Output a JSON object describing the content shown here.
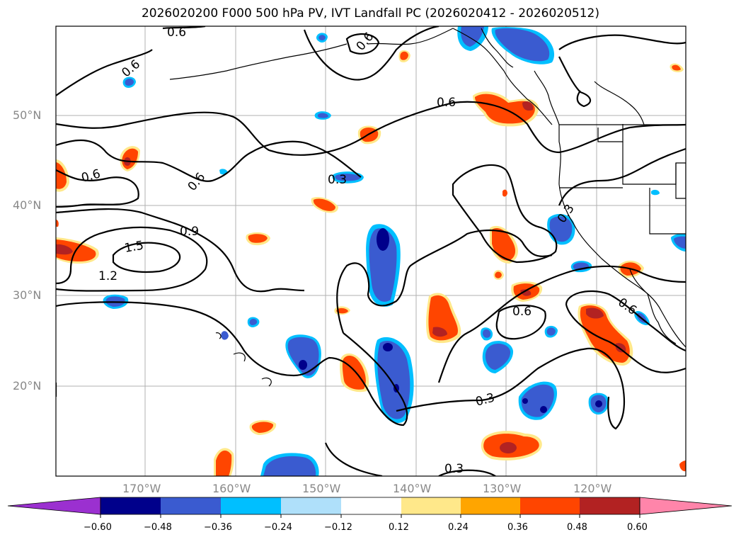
{
  "title": "2026020200 F000 500 hPa PV, IVT Landfall PC (2026020412 - 2026020512)",
  "lat_labels": [
    "50°N",
    "40°N",
    "30°N",
    "20°N"
  ],
  "lon_labels": [
    "170°W",
    "160°W",
    "150°W",
    "140°W",
    "130°W",
    "120°W"
  ],
  "contour_labels": [
    "0.6",
    "0.6",
    "0.6",
    "0.6",
    "0.6",
    "0.6",
    "0.6",
    "0.6",
    "0.3",
    "0.3",
    "0.9",
    "1.5",
    "1.2",
    "0.3",
    "0.3"
  ],
  "colorbar": {
    "ticks": [
      "−0.60",
      "−0.48",
      "−0.36",
      "−0.24",
      "−0.12",
      "0.12",
      "0.24",
      "0.36",
      "0.48",
      "0.60"
    ],
    "colors": [
      "#9b30d0",
      "#00008b",
      "#3a5bd0",
      "#00bfff",
      "#afe0fa",
      "#ffffff",
      "#ffe88a",
      "#ffa500",
      "#ff4500",
      "#b22222",
      "#ff85aa"
    ]
  },
  "colors": {
    "land_outline": "#000000",
    "grid": "#b0b0b0",
    "contour": "#000000",
    "negative_light": "#00bfff",
    "negative_mid": "#3a5bd0",
    "negative_dark": "#00008b",
    "positive_light": "#ffe88a",
    "positive_mid": "#ffa500",
    "positive_strong": "#ff4500",
    "positive_dark": "#b22222"
  }
}
